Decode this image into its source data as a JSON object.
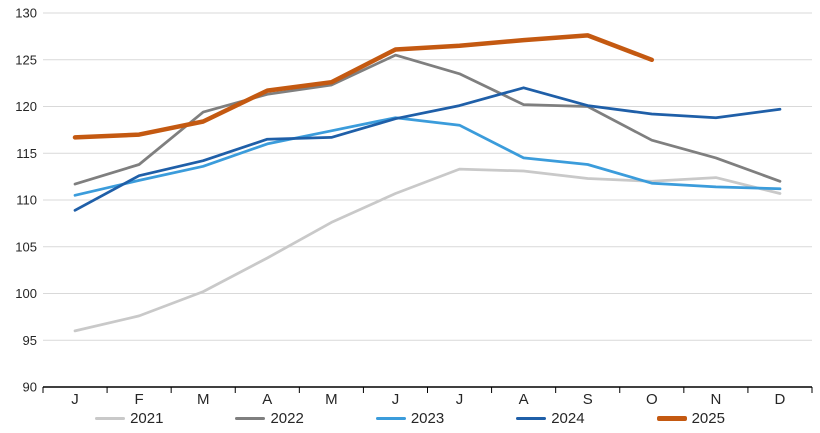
{
  "chart_data": {
    "type": "line",
    "title": "",
    "xlabel": "",
    "ylabel": "",
    "ylim": [
      90,
      130
    ],
    "y_ticks": [
      90,
      95,
      100,
      105,
      110,
      115,
      120,
      125,
      130
    ],
    "grid": true,
    "legend_position": "bottom",
    "categories": [
      "J",
      "F",
      "M",
      "A",
      "M",
      "J",
      "J",
      "A",
      "S",
      "O",
      "N",
      "D"
    ],
    "series": [
      {
        "name": "2021",
        "color": "#C9C9C9",
        "line_width": 2.75,
        "values": [
          96.0,
          97.6,
          100.2,
          103.8,
          107.6,
          110.7,
          113.3,
          113.1,
          112.3,
          112.0,
          112.4,
          110.7
        ]
      },
      {
        "name": "2022",
        "color": "#7F7F7F",
        "line_width": 2.75,
        "values": [
          111.7,
          113.8,
          119.4,
          121.3,
          122.3,
          125.5,
          123.5,
          120.2,
          120.0,
          116.4,
          114.5,
          112.0
        ]
      },
      {
        "name": "2023",
        "color": "#3B9CDB",
        "line_width": 2.75,
        "values": [
          110.5,
          112.1,
          113.6,
          116.0,
          117.4,
          118.8,
          118.0,
          114.5,
          113.8,
          111.8,
          111.4,
          111.2
        ]
      },
      {
        "name": "2024",
        "color": "#1F5FA8",
        "line_width": 2.75,
        "values": [
          108.9,
          112.6,
          114.2,
          116.5,
          116.7,
          118.7,
          120.1,
          122.0,
          120.1,
          119.2,
          118.8,
          119.7
        ]
      },
      {
        "name": "2025",
        "color": "#C45911",
        "line_width": 4.5,
        "values": [
          116.7,
          117.0,
          118.4,
          121.7,
          122.6,
          126.1,
          126.5,
          127.1,
          127.6,
          125.0,
          null,
          null
        ]
      }
    ],
    "axis_color": "#000000",
    "gridline_color": "#D9D9D9",
    "tick_label_color": "#262626"
  }
}
